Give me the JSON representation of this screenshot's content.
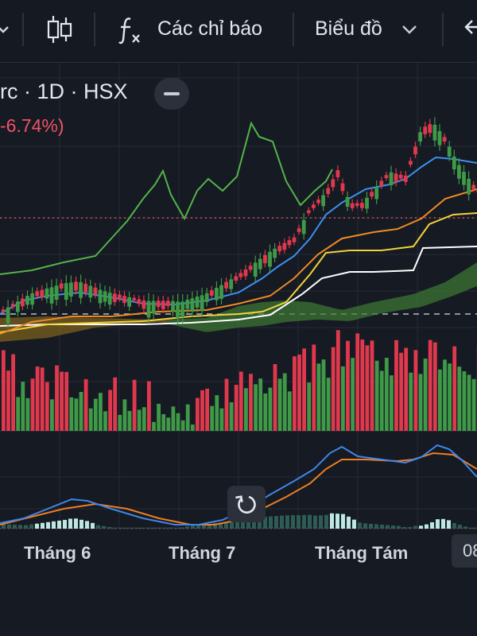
{
  "toolbar": {
    "indicators_label": "Các chỉ báo",
    "chart_label": "Biểu đồ"
  },
  "legend": {
    "symbol_text": "rc · 1D · HSX",
    "change_text": "-6.74%)"
  },
  "xaxis": {
    "labels": [
      "Tháng 6",
      "Tháng 7",
      "Tháng Tám"
    ],
    "badge": "08"
  },
  "colors": {
    "background": "#151a23",
    "up": "#3f9a48",
    "down": "#e0384d",
    "ema_blue": "#3d8ff0",
    "ema_orange": "#f08a24",
    "line_yellow": "#f1d23a",
    "line_white": "#ffffff",
    "line_green": "#54b34a",
    "macd_line": "#3f86e8",
    "signal_line": "#f07d22",
    "hist_light": "#bde8e2",
    "hist_dark": "#2e5c55"
  },
  "icons": [
    "chevron-down-icon",
    "candlestick-icon",
    "function-icon",
    "minus-icon",
    "rotate-icon",
    "arrow-left-icon"
  ]
}
